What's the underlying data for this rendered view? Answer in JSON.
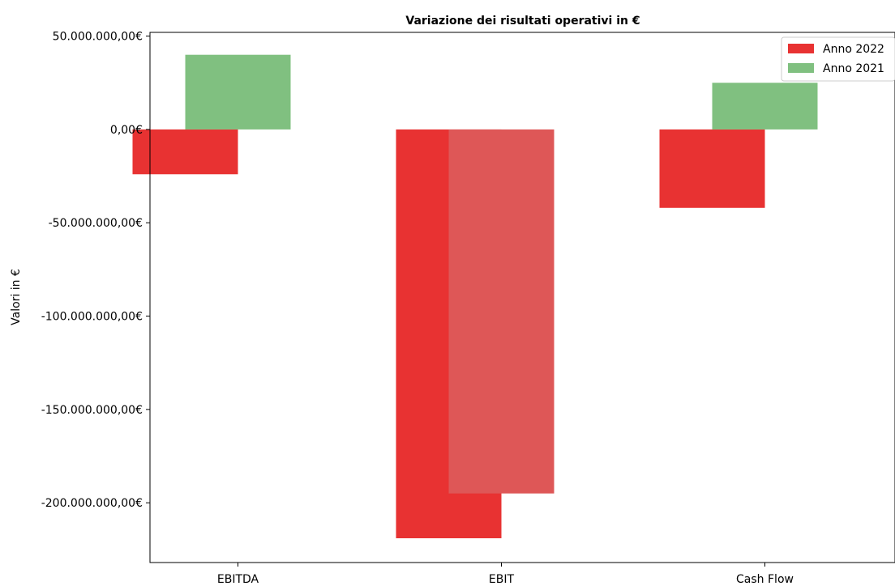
{
  "chart_data": {
    "type": "bar",
    "title": "Variazione dei risultati operativi in €",
    "xlabel": "",
    "ylabel": "Valori in €",
    "categories": [
      "EBITDA",
      "EBIT",
      "Cash Flow"
    ],
    "ylim": [
      -232000000,
      52000000
    ],
    "yticks": [
      50000000,
      0,
      -50000000,
      -100000000,
      -150000000,
      -200000000
    ],
    "ytick_labels": [
      "50.000.000,00€",
      "0,00€",
      "-50.000.000,00€",
      "-100.000.000,00€",
      "-150.000.000,00€",
      "-200.000.000,00€"
    ],
    "grid": false,
    "legend_position": "top-right",
    "series": [
      {
        "name": "Anno 2022",
        "values": [
          -24000000,
          -219000000,
          -42000000
        ],
        "color": "#e83232"
      },
      {
        "name": "Anno 2021",
        "values": [
          40000000,
          -195000000,
          25000000
        ],
        "color": "#80c080",
        "negative_color": "#de5757"
      }
    ]
  }
}
